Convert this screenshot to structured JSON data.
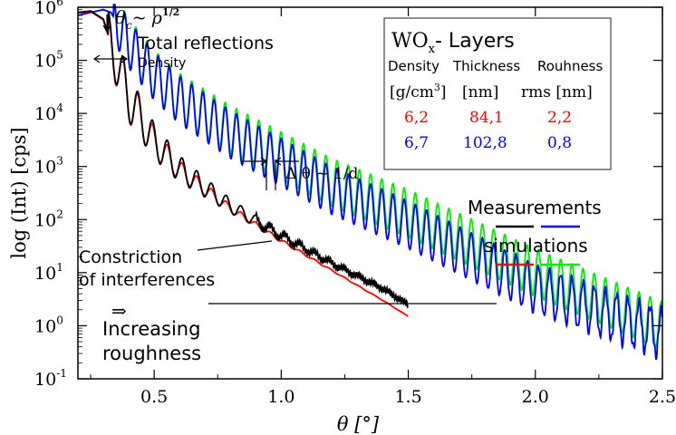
{
  "chart_data": {
    "type": "line",
    "xlabel": "θ [°]",
    "ylabel": "log (Int) [cps]",
    "xlim": [
      0.2,
      2.5
    ],
    "ylim_exponent": [
      -1,
      6
    ],
    "yscale": "log",
    "x_ticks": [
      "0.5",
      "1.0",
      "1.5",
      "2.0",
      "2.5"
    ],
    "y_ticks": [
      {
        "base": "10",
        "exp": "6"
      },
      {
        "base": "10",
        "exp": "5"
      },
      {
        "base": "10",
        "exp": "4"
      },
      {
        "base": "10",
        "exp": "3"
      },
      {
        "base": "10",
        "exp": "2"
      },
      {
        "base": "10",
        "exp": "1"
      },
      {
        "base": "10",
        "exp": "0"
      },
      {
        "base": "10",
        "exp": "-1"
      }
    ],
    "series": [
      {
        "color": "#000000",
        "kind": "measurement",
        "layer": "WO_x 6,2 g/cm3, 84,1 nm",
        "x": [
          0.2,
          0.25,
          0.3,
          0.35,
          0.4,
          0.5,
          0.6,
          0.8,
          1.0,
          1.2,
          1.4,
          1.5
        ],
        "y": [
          800000,
          850000,
          600000,
          100000,
          20000,
          3000,
          900,
          180,
          50,
          15,
          5,
          2.5
        ]
      },
      {
        "color": "#0000ff",
        "kind": "measurement",
        "layer": "WO_x 6,7 g/cm3, 102,8 nm",
        "x": [
          0.2,
          0.25,
          0.3,
          0.33,
          0.4,
          0.5,
          0.6,
          0.8,
          1.0,
          1.2,
          1.5,
          2.0,
          2.5
        ],
        "y": [
          700000,
          800000,
          900000,
          800000,
          200000,
          50000,
          18000,
          4000,
          1200,
          350,
          80,
          5,
          0.7
        ]
      },
      {
        "color": "#ff0000",
        "kind": "simulation",
        "layer": "WO_x 6,2 g/cm3, 84,1 nm",
        "x": [
          0.2,
          0.25,
          0.3,
          0.35,
          0.4,
          0.5,
          0.6,
          0.8,
          1.0,
          1.2,
          1.4,
          1.5
        ],
        "y": [
          780000,
          830000,
          580000,
          95000,
          19000,
          2800,
          850,
          160,
          40,
          11,
          3,
          1.5
        ]
      },
      {
        "color": "#00ee00",
        "kind": "simulation",
        "layer": "WO_x 6,7 g/cm3, 102,8 nm",
        "x": [
          0.2,
          0.25,
          0.3,
          0.33,
          0.4,
          0.5,
          0.6,
          0.8,
          1.0,
          1.2,
          1.5,
          2.0,
          2.5
        ],
        "y": [
          700000,
          800000,
          900000,
          800000,
          220000,
          55000,
          20000,
          5000,
          1600,
          500,
          130,
          10,
          1
        ]
      }
    ],
    "legend_box": {
      "title_main": "WO",
      "title_sub": "x",
      "title_suffix": "- Layers",
      "headers": [
        "Density",
        "Thickness",
        "Rouhness"
      ],
      "units": {
        "density_pre": "[g/cm",
        "density_sup": "3",
        "density_post": "]",
        "thickness": "[nm]",
        "roughness": "rms [nm]"
      },
      "rows": [
        {
          "density": "6,2",
          "thickness": "84,1",
          "roughness": "2,2",
          "color": "#ff0000"
        },
        {
          "density": "6,7",
          "thickness": "102,8",
          "roughness": "0,8",
          "color": "#0000ff"
        }
      ]
    },
    "legend_labels": {
      "measurements": "Measurements",
      "simulations": "simulations"
    },
    "annotations": {
      "theta_c": "θ",
      "theta_c_sub": "c",
      "theta_c_tilde": "~ ρ",
      "theta_c_sup": "1/2",
      "total_reflections": "Total reflections",
      "density": "Density",
      "delta_theta": "Δ θ ~ 1/d",
      "constriction_1": "Constriction",
      "constriction_2": "of interferences",
      "arrow_symbol": "⇒",
      "roughness_1": "Increasing",
      "roughness_2": "roughness"
    }
  }
}
